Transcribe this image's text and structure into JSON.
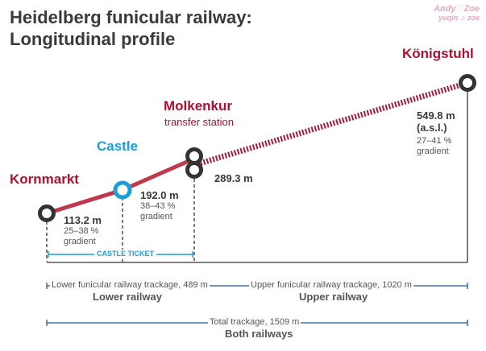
{
  "title": {
    "line1": "Heidelberg funicular railway:",
    "line2": "Longitudinal profile"
  },
  "watermark": {
    "line1": "Andy♡Zoe",
    "line2": "yuqin ♫ zoe"
  },
  "stations": [
    {
      "name": "Kornmarkt",
      "color": "#b0102f"
    },
    {
      "name": "Castle",
      "color": "#1aa0d8"
    },
    {
      "name": "Molkenkur",
      "subtitle": "transfer station",
      "color": "#b0102f"
    },
    {
      "name": "Königstuhl",
      "color": "#b0102f"
    }
  ],
  "elevations": {
    "kornmarkt": {
      "value": "113.2 m",
      "grad1": "25–38 %",
      "grad2": "gradient"
    },
    "castle": {
      "value": "192.0 m",
      "grad1": "38–43 %",
      "grad2": "gradient"
    },
    "molkenkur": {
      "value": "289.3 m"
    },
    "koenigstuhl": {
      "value": "549.8 m",
      "unit": "(a.s.l.)",
      "grad1": "27–41 %",
      "grad2": "gradient"
    }
  },
  "castle_ticket": "CASTLE TICKET",
  "lower": {
    "track": "Lower funicular railway trackage, 489 m",
    "name": "Lower railway"
  },
  "upper": {
    "track": "Upper funicular railway trackage, 1020 m",
    "name": "Upper railway"
  },
  "total": {
    "track": "Total trackage, 1509 m",
    "name": "Both railways"
  },
  "colors": {
    "rail": "#c0384e",
    "accent_blue": "#1aa0d8",
    "text": "#3a3a3a"
  }
}
